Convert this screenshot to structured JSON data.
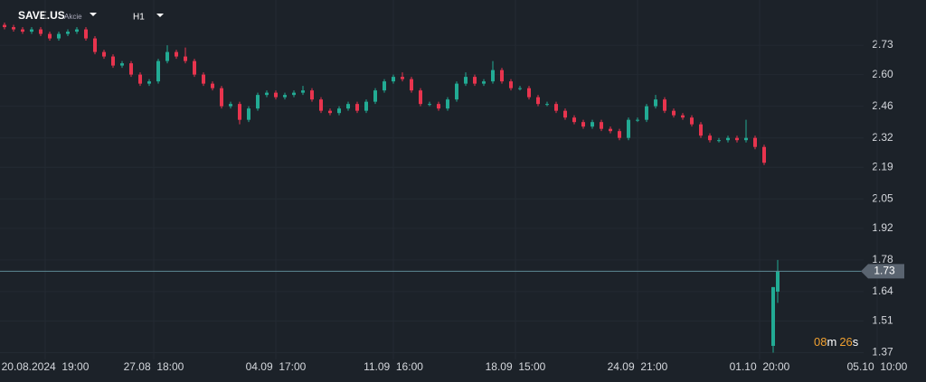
{
  "header": {
    "symbol": "SAVE.US",
    "instrument_type": "Akcie",
    "timeframe": "H1"
  },
  "countdown": [
    "08",
    "m",
    "26",
    "s"
  ],
  "chart_data": {
    "type": "candlestick",
    "x": [
      1,
      3,
      5,
      7,
      9,
      11,
      13,
      15,
      17,
      19,
      21,
      23,
      25,
      27,
      29,
      31,
      33,
      35,
      37,
      39,
      41,
      43,
      45,
      47,
      49,
      51,
      53,
      55,
      57,
      59,
      61,
      63,
      65,
      67,
      69,
      71,
      73,
      75,
      77,
      79,
      81,
      83,
      85,
      87,
      89,
      91,
      93,
      95,
      97,
      99,
      101,
      103,
      105,
      107,
      109,
      111,
      113,
      115,
      117,
      119,
      121,
      123,
      125,
      127,
      129,
      131,
      133,
      135,
      137,
      139,
      141,
      143,
      145,
      147,
      149,
      151,
      153,
      155,
      157,
      159,
      161,
      163,
      165,
      167,
      169,
      171,
      172
    ],
    "open": [
      2.82,
      2.81,
      2.8,
      2.79,
      2.8,
      2.78,
      2.76,
      2.78,
      2.79,
      2.8,
      2.76,
      2.7,
      2.68,
      2.64,
      2.65,
      2.6,
      2.56,
      2.57,
      2.66,
      2.7,
      2.68,
      2.66,
      2.6,
      2.56,
      2.54,
      2.46,
      2.47,
      2.4,
      2.45,
      2.51,
      2.52,
      2.5,
      2.51,
      2.52,
      2.53,
      2.49,
      2.44,
      2.43,
      2.45,
      2.47,
      2.44,
      2.48,
      2.53,
      2.57,
      2.59,
      2.58,
      2.53,
      2.47,
      2.47,
      2.45,
      2.49,
      2.56,
      2.59,
      2.56,
      2.57,
      2.62,
      2.57,
      2.54,
      2.54,
      2.5,
      2.47,
      2.47,
      2.44,
      2.41,
      2.39,
      2.37,
      2.39,
      2.36,
      2.35,
      2.32,
      2.4,
      2.4,
      2.46,
      2.49,
      2.44,
      2.42,
      2.41,
      2.38,
      2.33,
      2.31,
      2.31,
      2.32,
      2.31,
      2.32,
      2.28,
      1.4,
      1.64
    ],
    "high": [
      2.83,
      2.82,
      2.81,
      2.81,
      2.81,
      2.79,
      2.79,
      2.8,
      2.81,
      2.81,
      2.77,
      2.71,
      2.69,
      2.66,
      2.66,
      2.61,
      2.58,
      2.67,
      2.73,
      2.71,
      2.72,
      2.67,
      2.61,
      2.57,
      2.55,
      2.48,
      2.48,
      2.46,
      2.52,
      2.53,
      2.53,
      2.52,
      2.53,
      2.55,
      2.54,
      2.5,
      2.45,
      2.46,
      2.48,
      2.48,
      2.49,
      2.54,
      2.58,
      2.6,
      2.61,
      2.59,
      2.54,
      2.48,
      2.48,
      2.5,
      2.57,
      2.61,
      2.6,
      2.58,
      2.66,
      2.63,
      2.58,
      2.55,
      2.55,
      2.51,
      2.48,
      2.48,
      2.45,
      2.42,
      2.4,
      2.4,
      2.4,
      2.37,
      2.36,
      2.41,
      2.41,
      2.47,
      2.51,
      2.5,
      2.45,
      2.43,
      2.42,
      2.39,
      2.34,
      2.32,
      2.33,
      2.33,
      2.4,
      2.33,
      2.29,
      1.66,
      1.78
    ],
    "low": [
      2.8,
      2.79,
      2.78,
      2.78,
      2.77,
      2.75,
      2.75,
      2.77,
      2.78,
      2.75,
      2.69,
      2.67,
      2.63,
      2.63,
      2.59,
      2.55,
      2.55,
      2.56,
      2.65,
      2.67,
      2.65,
      2.59,
      2.55,
      2.53,
      2.45,
      2.45,
      2.38,
      2.39,
      2.44,
      2.5,
      2.49,
      2.49,
      2.5,
      2.51,
      2.48,
      2.43,
      2.42,
      2.42,
      2.44,
      2.43,
      2.43,
      2.47,
      2.52,
      2.56,
      2.57,
      2.52,
      2.46,
      2.46,
      2.44,
      2.44,
      2.48,
      2.55,
      2.55,
      2.55,
      2.56,
      2.56,
      2.53,
      2.53,
      2.49,
      2.46,
      2.46,
      2.43,
      2.4,
      2.38,
      2.36,
      2.36,
      2.35,
      2.34,
      2.31,
      2.31,
      2.39,
      2.39,
      2.45,
      2.43,
      2.41,
      2.4,
      2.37,
      2.32,
      2.3,
      2.3,
      2.3,
      2.3,
      2.3,
      2.27,
      2.2,
      1.37,
      1.59
    ],
    "close": [
      2.81,
      2.8,
      2.79,
      2.8,
      2.78,
      2.76,
      2.78,
      2.79,
      2.8,
      2.76,
      2.7,
      2.68,
      2.64,
      2.65,
      2.6,
      2.56,
      2.57,
      2.66,
      2.7,
      2.68,
      2.66,
      2.6,
      2.56,
      2.54,
      2.46,
      2.47,
      2.4,
      2.45,
      2.51,
      2.52,
      2.5,
      2.51,
      2.52,
      2.53,
      2.49,
      2.44,
      2.43,
      2.45,
      2.47,
      2.44,
      2.48,
      2.53,
      2.57,
      2.59,
      2.58,
      2.53,
      2.47,
      2.47,
      2.45,
      2.49,
      2.56,
      2.59,
      2.56,
      2.57,
      2.62,
      2.57,
      2.54,
      2.54,
      2.5,
      2.47,
      2.47,
      2.44,
      2.41,
      2.39,
      2.37,
      2.39,
      2.36,
      2.35,
      2.32,
      2.4,
      2.4,
      2.46,
      2.49,
      2.44,
      2.42,
      2.41,
      2.38,
      2.33,
      2.31,
      2.31,
      2.32,
      2.31,
      2.32,
      2.28,
      2.21,
      1.66,
      1.73
    ],
    "up_color": "#22ab94",
    "down_color": "#e8344e",
    "xlim": [
      0,
      192
    ],
    "xticks": [
      {
        "value": 10,
        "label": "20.08.2024  19:00"
      },
      {
        "value": 34,
        "label": "27.08  18:00"
      },
      {
        "value": 61,
        "label": "04.09  17:00"
      },
      {
        "value": 87,
        "label": "11.09  16:00"
      },
      {
        "value": 114,
        "label": "18.09  15:00"
      },
      {
        "value": 141,
        "label": "24.09  21:00"
      },
      {
        "value": 168,
        "label": "01.10  20:00"
      },
      {
        "value": 194,
        "label": "05.10  10:00"
      }
    ],
    "ylim": [
      1.34,
      2.93
    ],
    "yticks": [
      2.73,
      {
        "value": 2.6,
        "label": "2.60"
      },
      2.46,
      2.32,
      2.19,
      2.05,
      1.92,
      1.78,
      1.64,
      1.51,
      1.37
    ],
    "last_price": 1.73
  }
}
